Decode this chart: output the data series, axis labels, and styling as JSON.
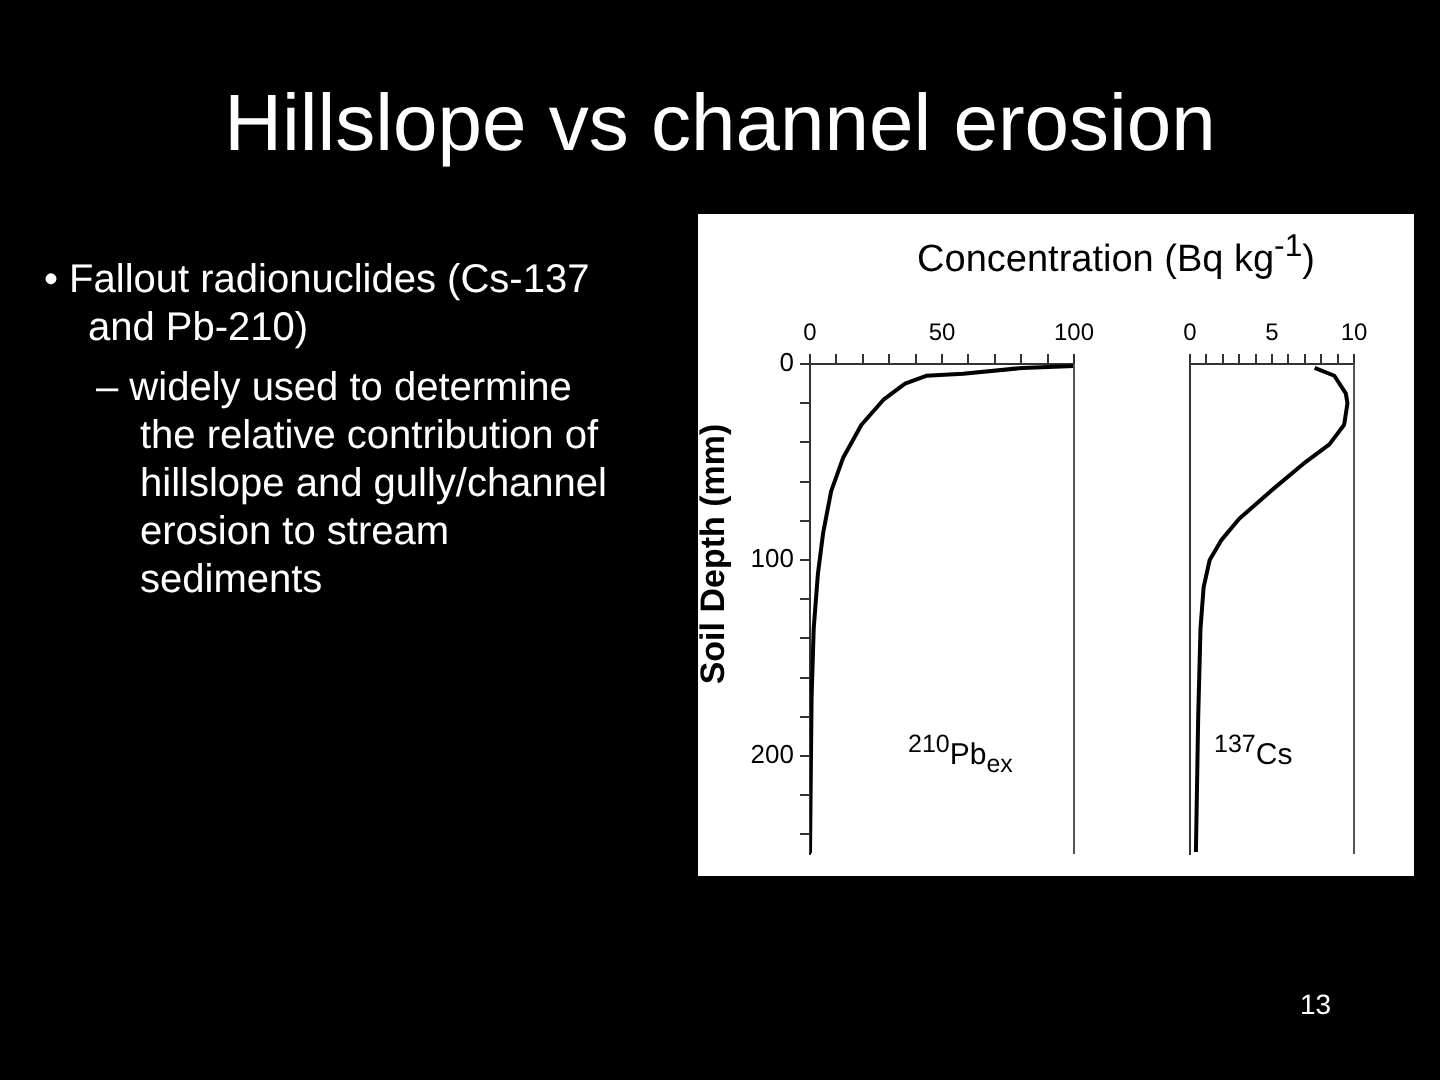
{
  "chart_data": [
    {
      "type": "line",
      "title": "Hillslope vs channel erosion",
      "xlabel": "Concentration (Bq kg$^{-1}$)",
      "ylabel": "Soil Depth (mm)",
      "annotations": [
        "• Fallout radionuclides (Cs-137 and Pb-210)",
        "– widely used to determine the relative contribution of hillslope and gully/channel erosion to stream sediments",
        "$^{210}$Pb$_{ex}$",
        "13"
      ],
      "series": [
        {
          "color": "#000000",
          "x": [
            100,
            80.5,
            58,
            44,
            36,
            28,
            19.5,
            12.5,
            8,
            5,
            3,
            1.4,
            0.6,
            0
          ],
          "values": [
            1,
            2,
            5,
            6,
            10,
            18,
            31,
            48,
            65,
            86,
            107,
            135,
            170,
            249
          ]
        }
      ],
      "xlim": [
        0,
        100
      ],
      "xticks": [
        0,
        {
          "value": 10,
          "label": null
        },
        {
          "value": 20,
          "label": null
        },
        {
          "value": 30,
          "label": null
        },
        {
          "value": 40,
          "label": null
        },
        50,
        {
          "value": 60,
          "label": null
        },
        {
          "value": 70,
          "label": null
        },
        {
          "value": 80,
          "label": null
        },
        {
          "value": 90,
          "label": null
        },
        100
      ],
      "ylim": [
        250,
        0
      ],
      "yticks": [
        0,
        {
          "value": 20,
          "label": null
        },
        {
          "value": 40,
          "label": null
        },
        {
          "value": 60,
          "label": null
        },
        {
          "value": 80,
          "label": null
        },
        100,
        {
          "value": 120,
          "label": null
        },
        {
          "value": 140,
          "label": null
        },
        {
          "value": 160,
          "label": null
        },
        {
          "value": 180,
          "label": null
        },
        200,
        {
          "value": 220,
          "label": null
        },
        {
          "value": 240,
          "label": null
        }
      ],
      "marker": "none",
      "line_style": "solid"
    },
    {
      "type": "line",
      "annotations": [
        "$^{137}$Cs"
      ],
      "series": [
        {
          "color": "#000000",
          "x": [
            7.6,
            8.8,
            9.5,
            9.6,
            9.4,
            8.5,
            6.9,
            4.9,
            3.0,
            1.9,
            1.2,
            0.83,
            0.64,
            0.5,
            0.36
          ],
          "values": [
            2,
            6,
            15,
            20,
            31,
            41,
            51,
            65,
            79,
            90,
            100,
            114,
            135,
            180,
            249
          ]
        }
      ],
      "xlim": [
        0,
        10
      ],
      "xticks": [
        0,
        {
          "value": 1,
          "label": null
        },
        {
          "value": 2,
          "label": null
        },
        {
          "value": 3,
          "label": null
        },
        {
          "value": 4,
          "label": null
        },
        5,
        {
          "value": 6,
          "label": null
        },
        {
          "value": 7,
          "label": null
        },
        {
          "value": 8,
          "label": null
        },
        {
          "value": 9,
          "label": null
        },
        10
      ],
      "ylim": [
        250,
        0
      ],
      "tick_labels": "x",
      "marker": "none",
      "line_style": "solid"
    }
  ]
}
